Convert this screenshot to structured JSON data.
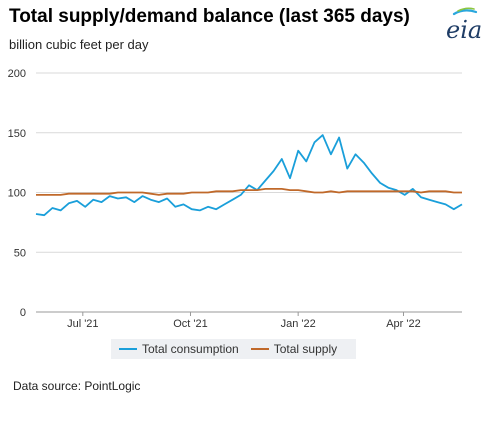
{
  "header": {
    "title": "Total supply/demand balance (last 365 days)",
    "subtitle": "billion cubic feet per day",
    "logo_text": "eia"
  },
  "footer": {
    "source": "Data source: PointLogic"
  },
  "colors": {
    "consumption": "#1a9fda",
    "supply": "#c0692a",
    "grid": "#d9d9d9",
    "legend_bg": "#eef0f3"
  },
  "chart_data": {
    "type": "line",
    "title": "Total supply/demand balance (last 365 days)",
    "ylabel": "billion cubic feet per day",
    "ylim": [
      0,
      200
    ],
    "y_ticks": [
      "0",
      "50",
      "100",
      "150",
      "200"
    ],
    "x_range": [
      "2021-05-22",
      "2022-05-21"
    ],
    "x_ticks": [
      {
        "date": "2021-07-01",
        "label": "Jul '21"
      },
      {
        "date": "2021-10-01",
        "label": "Oct '21"
      },
      {
        "date": "2022-01-01",
        "label": "Jan '22"
      },
      {
        "date": "2022-04-01",
        "label": "Apr '22"
      }
    ],
    "grid": "horizontal",
    "legend": "bottom",
    "series": [
      {
        "name": "Total consumption",
        "points": [
          [
            "2021-05-22",
            82
          ],
          [
            "2021-05-29",
            81
          ],
          [
            "2021-06-05",
            87
          ],
          [
            "2021-06-12",
            85
          ],
          [
            "2021-06-19",
            91
          ],
          [
            "2021-06-26",
            93
          ],
          [
            "2021-07-03",
            88
          ],
          [
            "2021-07-10",
            94
          ],
          [
            "2021-07-17",
            92
          ],
          [
            "2021-07-24",
            97
          ],
          [
            "2021-07-31",
            95
          ],
          [
            "2021-08-07",
            96
          ],
          [
            "2021-08-14",
            92
          ],
          [
            "2021-08-21",
            97
          ],
          [
            "2021-08-28",
            94
          ],
          [
            "2021-09-04",
            92
          ],
          [
            "2021-09-11",
            95
          ],
          [
            "2021-09-18",
            88
          ],
          [
            "2021-09-25",
            90
          ],
          [
            "2021-10-02",
            86
          ],
          [
            "2021-10-09",
            85
          ],
          [
            "2021-10-16",
            88
          ],
          [
            "2021-10-23",
            86
          ],
          [
            "2021-10-30",
            90
          ],
          [
            "2021-11-06",
            94
          ],
          [
            "2021-11-13",
            98
          ],
          [
            "2021-11-20",
            106
          ],
          [
            "2021-11-27",
            102
          ],
          [
            "2021-12-04",
            110
          ],
          [
            "2021-12-11",
            118
          ],
          [
            "2021-12-18",
            128
          ],
          [
            "2021-12-25",
            112
          ],
          [
            "2022-01-01",
            135
          ],
          [
            "2022-01-08",
            126
          ],
          [
            "2022-01-15",
            142
          ],
          [
            "2022-01-22",
            148
          ],
          [
            "2022-01-29",
            132
          ],
          [
            "2022-02-05",
            146
          ],
          [
            "2022-02-12",
            120
          ],
          [
            "2022-02-19",
            132
          ],
          [
            "2022-02-26",
            125
          ],
          [
            "2022-03-05",
            116
          ],
          [
            "2022-03-12",
            108
          ],
          [
            "2022-03-19",
            104
          ],
          [
            "2022-03-26",
            102
          ],
          [
            "2022-04-02",
            98
          ],
          [
            "2022-04-09",
            103
          ],
          [
            "2022-04-16",
            96
          ],
          [
            "2022-04-23",
            94
          ],
          [
            "2022-04-30",
            92
          ],
          [
            "2022-05-07",
            90
          ],
          [
            "2022-05-14",
            86
          ],
          [
            "2022-05-21",
            90
          ]
        ]
      },
      {
        "name": "Total supply",
        "points": [
          [
            "2021-05-22",
            98
          ],
          [
            "2021-05-29",
            98
          ],
          [
            "2021-06-05",
            98
          ],
          [
            "2021-06-12",
            98
          ],
          [
            "2021-06-19",
            99
          ],
          [
            "2021-06-26",
            99
          ],
          [
            "2021-07-03",
            99
          ],
          [
            "2021-07-10",
            99
          ],
          [
            "2021-07-17",
            99
          ],
          [
            "2021-07-24",
            99
          ],
          [
            "2021-07-31",
            100
          ],
          [
            "2021-08-07",
            100
          ],
          [
            "2021-08-14",
            100
          ],
          [
            "2021-08-21",
            100
          ],
          [
            "2021-08-28",
            99
          ],
          [
            "2021-09-04",
            98
          ],
          [
            "2021-09-11",
            99
          ],
          [
            "2021-09-18",
            99
          ],
          [
            "2021-09-25",
            99
          ],
          [
            "2021-10-02",
            100
          ],
          [
            "2021-10-09",
            100
          ],
          [
            "2021-10-16",
            100
          ],
          [
            "2021-10-23",
            101
          ],
          [
            "2021-10-30",
            101
          ],
          [
            "2021-11-06",
            101
          ],
          [
            "2021-11-13",
            102
          ],
          [
            "2021-11-20",
            102
          ],
          [
            "2021-11-27",
            102
          ],
          [
            "2021-12-04",
            103
          ],
          [
            "2021-12-11",
            103
          ],
          [
            "2021-12-18",
            103
          ],
          [
            "2021-12-25",
            102
          ],
          [
            "2022-01-01",
            102
          ],
          [
            "2022-01-08",
            101
          ],
          [
            "2022-01-15",
            100
          ],
          [
            "2022-01-22",
            100
          ],
          [
            "2022-01-29",
            101
          ],
          [
            "2022-02-05",
            100
          ],
          [
            "2022-02-12",
            101
          ],
          [
            "2022-02-19",
            101
          ],
          [
            "2022-02-26",
            101
          ],
          [
            "2022-03-05",
            101
          ],
          [
            "2022-03-12",
            101
          ],
          [
            "2022-03-19",
            101
          ],
          [
            "2022-03-26",
            101
          ],
          [
            "2022-04-02",
            101
          ],
          [
            "2022-04-09",
            101
          ],
          [
            "2022-04-16",
            100
          ],
          [
            "2022-04-23",
            101
          ],
          [
            "2022-04-30",
            101
          ],
          [
            "2022-05-07",
            101
          ],
          [
            "2022-05-14",
            100
          ],
          [
            "2022-05-21",
            100
          ]
        ]
      }
    ]
  }
}
